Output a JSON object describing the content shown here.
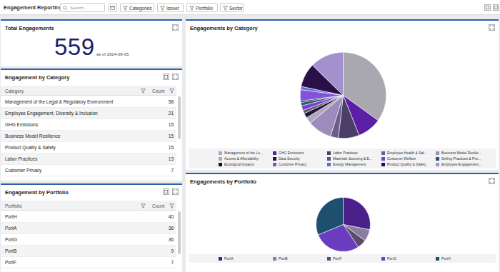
{
  "toolbar": {
    "title": "Engagement Reporting",
    "search_placeholder": "Search...",
    "filters": [
      "Categories",
      "Issuer",
      "Portfolio",
      "Sector"
    ]
  },
  "total_engagements": {
    "title": "Total Engagements",
    "value": 559,
    "as_of": "as of 2024-09-05"
  },
  "category_table": {
    "title": "Engagement by Category",
    "columns": [
      "Category",
      "Count"
    ],
    "rows": [
      [
        "Management of the Legal & Regulatory Environment",
        58
      ],
      [
        "Employee Engagement, Diversity & Inclusion",
        21
      ],
      [
        "GHG Emissions",
        15
      ],
      [
        "Business Model Resilience",
        15
      ],
      [
        "Product Quality & Safety",
        15
      ],
      [
        "Labor Practices",
        13
      ],
      [
        "Customer Privacy",
        7
      ]
    ]
  },
  "portfolio_table": {
    "title": "Engagement by Portfolio",
    "columns": [
      "Portfolio",
      "Count"
    ],
    "rows": [
      [
        "PortH",
        40
      ],
      [
        "PortA",
        36
      ],
      [
        "PortG",
        36
      ],
      [
        "PortB",
        9
      ],
      [
        "PortF",
        7
      ]
    ]
  },
  "chart_data": [
    {
      "type": "pie",
      "title": "Engagements by Category",
      "legend": "bottom",
      "categories": [
        "Management of the Le...",
        "GHG Emissions",
        "Labor Practices",
        "Employee Health & Saf...",
        "Business Model Resilie...",
        "Access & Affordability",
        "Data Security",
        "Materials Sourcing & E...",
        "Customer Welfare",
        "Selling Practices & Pro...",
        "Ecological Impacts",
        "Customer Privacy",
        "Energy Management",
        "Product Quality & Safety",
        "Employee Engagement..."
      ],
      "values": [
        58,
        15,
        13,
        5,
        15,
        4,
        3,
        2,
        3,
        2,
        1,
        7,
        2,
        15,
        21
      ],
      "colors": [
        "#a9a8b0",
        "#5b1fa6",
        "#4a3f66",
        "#6e5c8e",
        "#9d8bbb",
        "#b0a6c4",
        "#241638",
        "#5c5670",
        "#7b3fd0",
        "#1f5a6e",
        "#111111",
        "#8450dc",
        "#5a6fd8",
        "#2b1048",
        "#a390cc"
      ]
    },
    {
      "type": "pie",
      "title": "Engagements by Portfolio",
      "legend": "bottom",
      "categories": [
        "PortA",
        "PortB",
        "PortF",
        "PortG",
        "PortH"
      ],
      "values": [
        36,
        9,
        7,
        36,
        40
      ],
      "colors": [
        "#4a1f8a",
        "#8a7d9c",
        "#5a4c6c",
        "#6a3cc0",
        "#1f4f6e"
      ]
    }
  ]
}
